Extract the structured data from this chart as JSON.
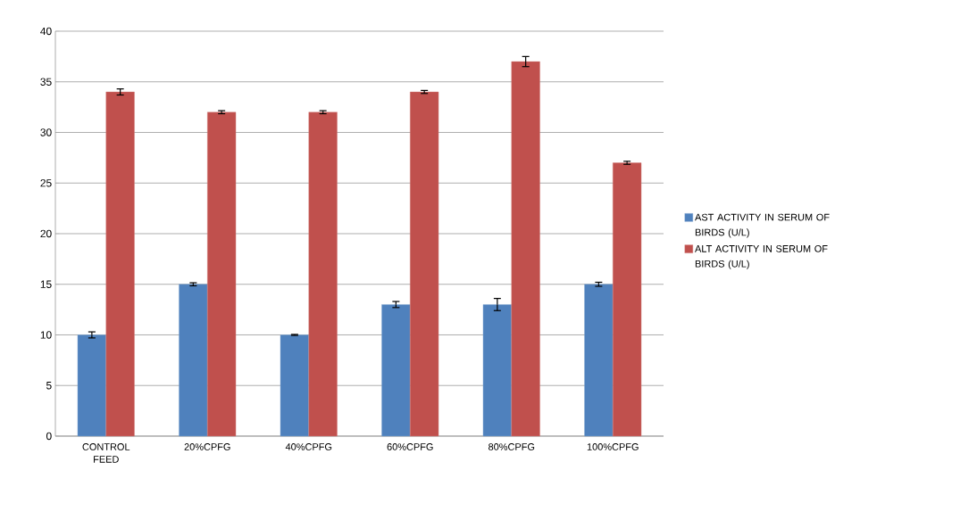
{
  "chart_data": {
    "type": "bar",
    "categories": [
      "CONTROL FEED",
      "20%CPFG",
      "40%CPFG",
      "60%CPFG",
      "80%CPFG",
      "100%CPFG"
    ],
    "series": [
      {
        "name": "AST ACTIVITY  IN SERUM  OF BIRDS (U/L)",
        "color": "#4f81bd",
        "values": [
          10,
          15,
          10,
          13,
          13,
          15
        ],
        "errors": [
          0.3,
          0.15,
          0.05,
          0.3,
          0.6,
          0.2
        ]
      },
      {
        "name": "ALT ACTIVITY  IN SERUM  OF BIRDS (U/L)",
        "color": "#c0504d",
        "values": [
          34,
          32,
          32,
          34,
          37,
          27
        ],
        "errors": [
          0.3,
          0.15,
          0.15,
          0.15,
          0.5,
          0.15
        ]
      }
    ],
    "ylim": [
      0,
      40
    ],
    "yticks": [
      0,
      5,
      10,
      15,
      20,
      25,
      30,
      35,
      40
    ],
    "grid": "y",
    "legend": "right"
  }
}
